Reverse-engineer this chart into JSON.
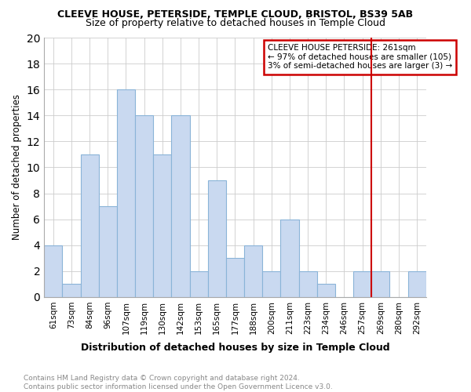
{
  "title": "CLEEVE HOUSE, PETERSIDE, TEMPLE CLOUD, BRISTOL, BS39 5AB",
  "subtitle": "Size of property relative to detached houses in Temple Cloud",
  "xlabel": "Distribution of detached houses by size in Temple Cloud",
  "ylabel": "Number of detached properties",
  "categories": [
    "61sqm",
    "73sqm",
    "84sqm",
    "96sqm",
    "107sqm",
    "119sqm",
    "130sqm",
    "142sqm",
    "153sqm",
    "165sqm",
    "177sqm",
    "188sqm",
    "200sqm",
    "211sqm",
    "223sqm",
    "234sqm",
    "246sqm",
    "257sqm",
    "269sqm",
    "280sqm",
    "292sqm"
  ],
  "values": [
    4,
    1,
    11,
    7,
    16,
    14,
    11,
    14,
    2,
    9,
    3,
    4,
    2,
    6,
    2,
    1,
    0,
    2,
    2,
    0,
    2
  ],
  "bar_color": "#c9d9f0",
  "bar_edge_color": "#8ab4d8",
  "vline_color": "#cc0000",
  "vline_x_idx": 17,
  "annotation_title": "CLEEVE HOUSE PETERSIDE: 261sqm",
  "annotation_line1": "← 97% of detached houses are smaller (105)",
  "annotation_line2": "3% of semi-detached houses are larger (3) →",
  "annotation_box_color": "#cc0000",
  "ylim": [
    0,
    20
  ],
  "yticks": [
    0,
    2,
    4,
    6,
    8,
    10,
    12,
    14,
    16,
    18,
    20
  ],
  "footer": "Contains HM Land Registry data © Crown copyright and database right 2024.\nContains public sector information licensed under the Open Government Licence v3.0.",
  "background_color": "#ffffff",
  "grid_color": "#cccccc"
}
